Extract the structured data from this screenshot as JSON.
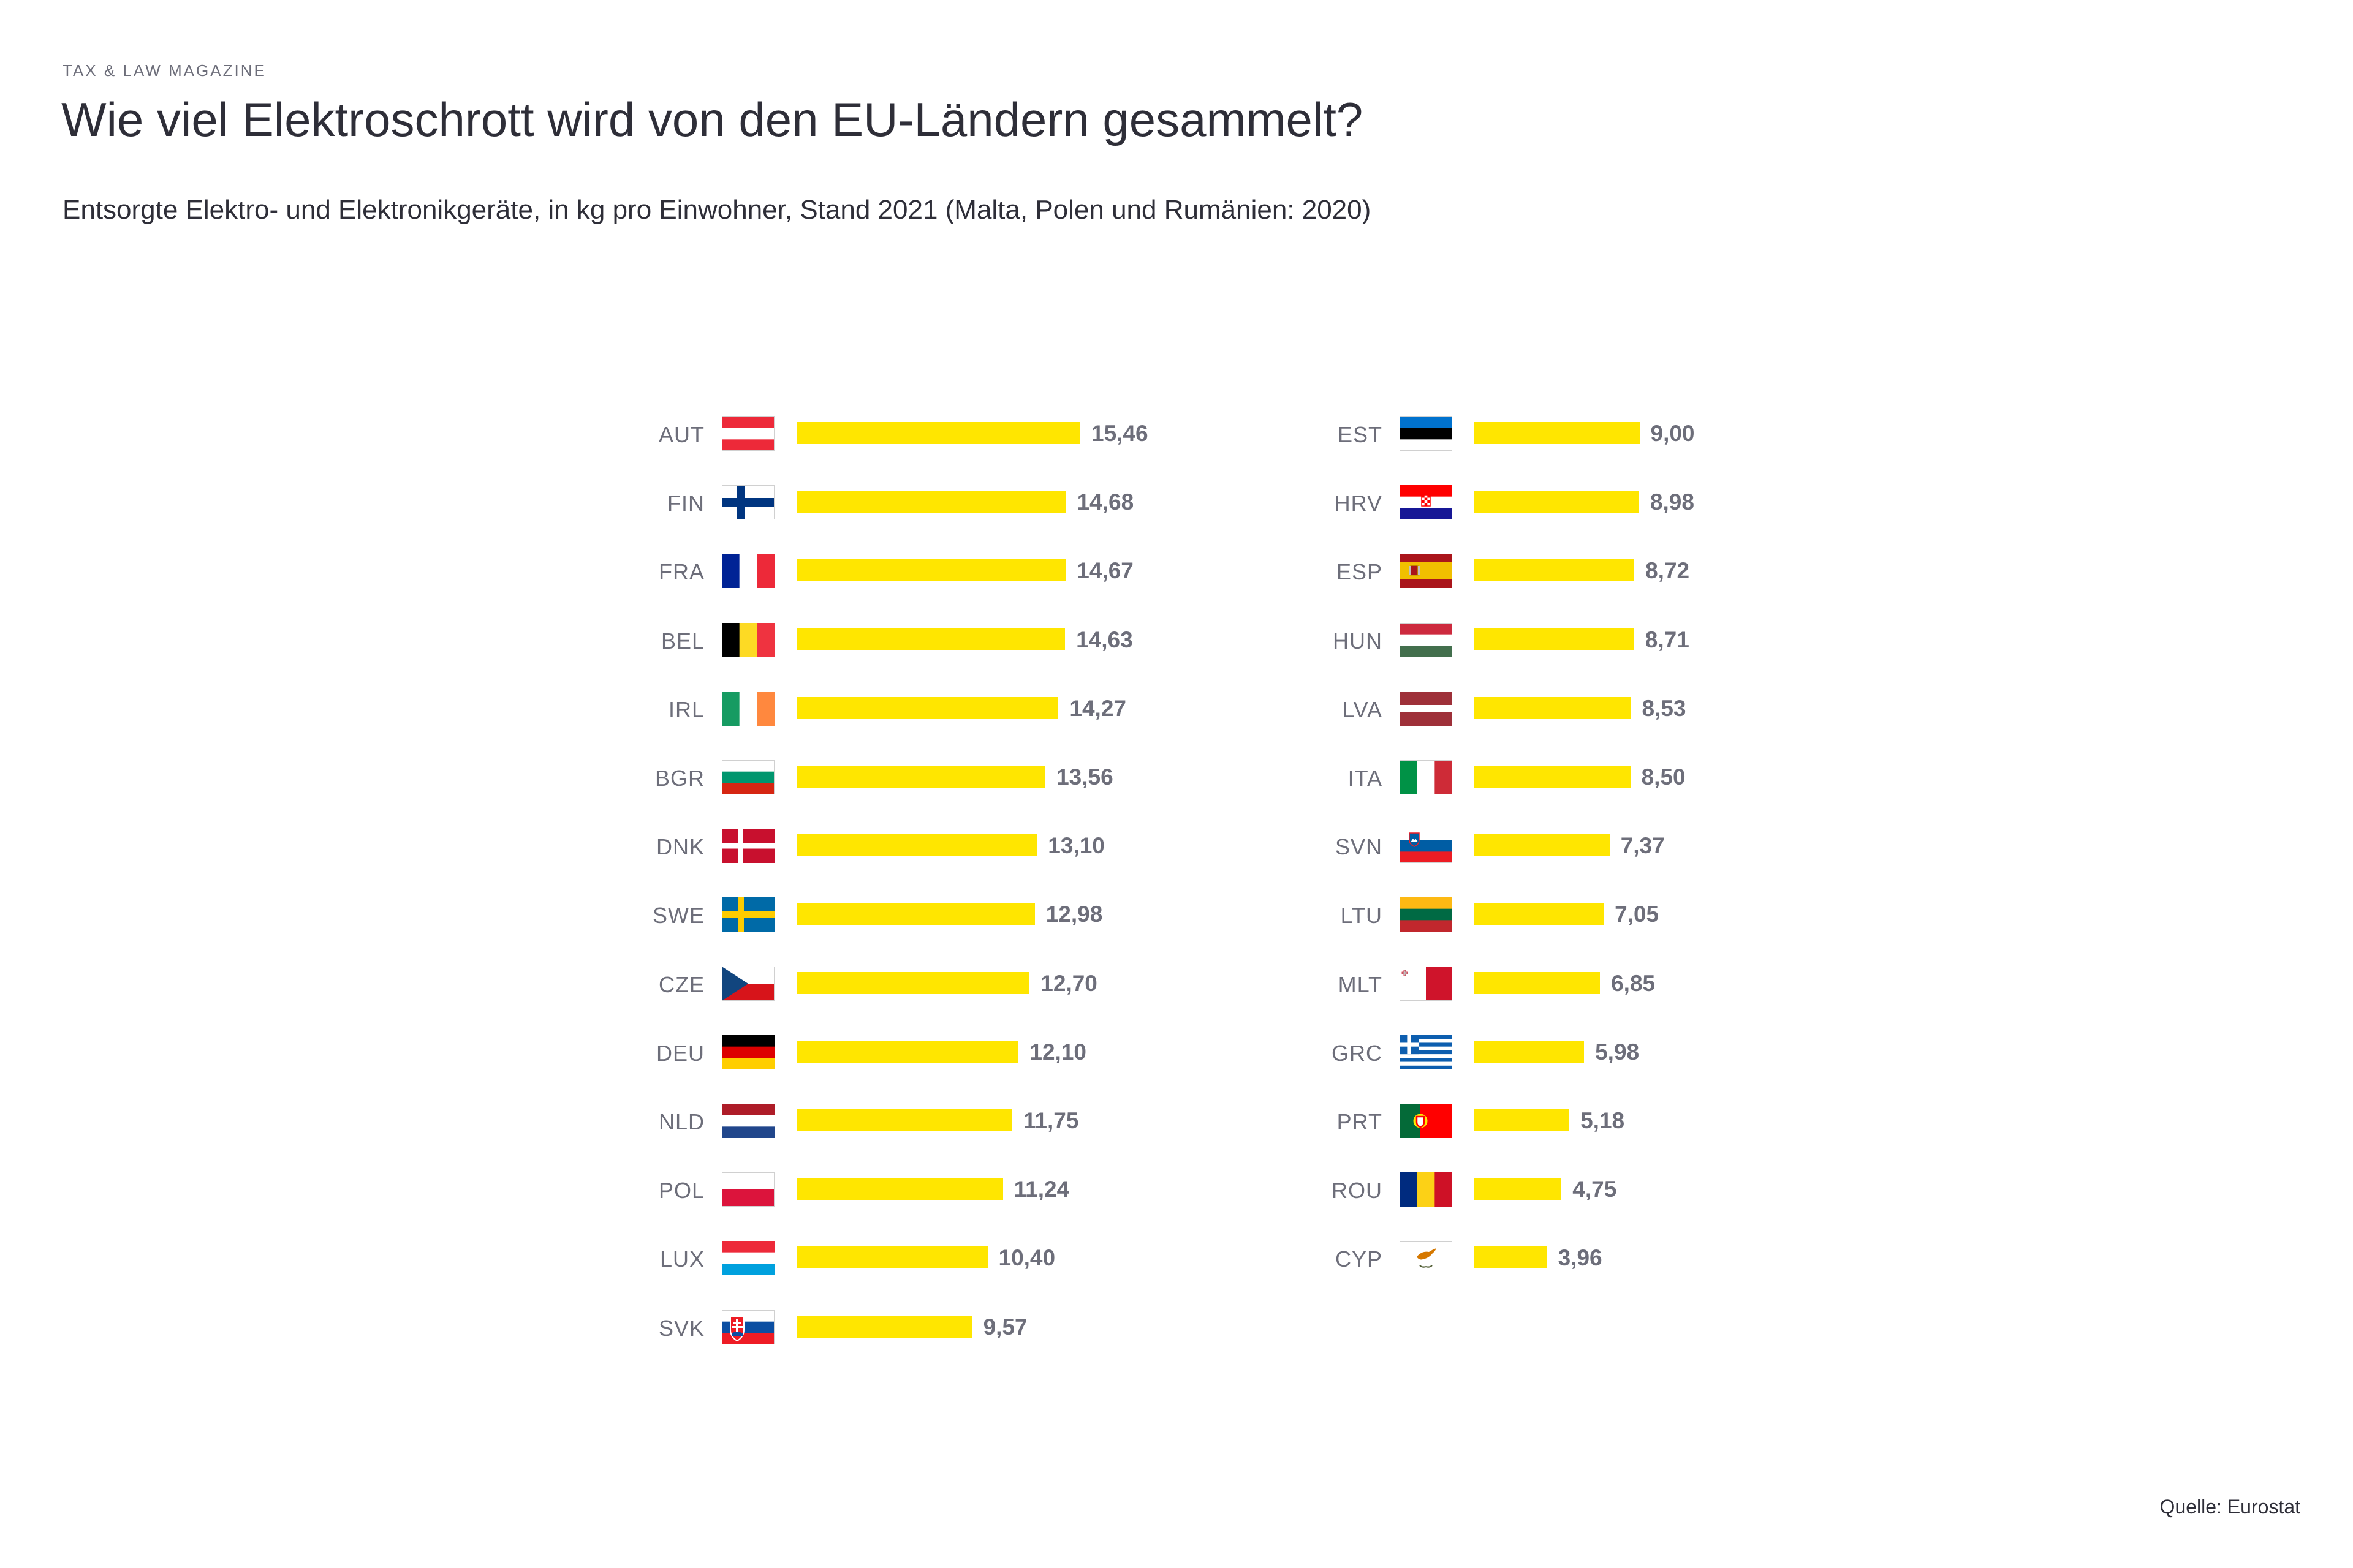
{
  "header": {
    "kicker": "TAX & LAW MAGAZINE",
    "title": "Wie viel Elektroschrott wird von den EU-Ländern gesammelt?",
    "subtitle": "Entsorgte Elektro- und Elektronikgeräte, in kg pro Einwohner, Stand 2021 (Malta, Polen und Rumänien: 2020)"
  },
  "footer": {
    "source": "Quelle: Eurostat"
  },
  "colors": {
    "bar": "#ffe600",
    "text": "#2e2e38",
    "muted": "#6d6e7a"
  },
  "chart_data": {
    "type": "bar",
    "orientation": "horizontal",
    "unit": "kg pro Einwohner",
    "title": "Wie viel Elektroschrott wird von den EU-Ländern gesammelt?",
    "xlim": [
      0,
      15.46
    ],
    "columns": [
      {
        "categories": [
          "AUT",
          "FIN",
          "FRA",
          "BEL",
          "IRL",
          "BGR",
          "DNK",
          "SWE",
          "CZE",
          "DEU",
          "NLD",
          "POL",
          "LUX",
          "SVK"
        ],
        "values": [
          15.46,
          14.68,
          14.67,
          14.63,
          14.27,
          13.56,
          13.1,
          12.98,
          12.7,
          12.1,
          11.75,
          11.24,
          10.4,
          9.57
        ],
        "labels": [
          "15,46",
          "14,68",
          "14,67",
          "14,63",
          "14,27",
          "13,56",
          "13,10",
          "12,98",
          "12,70",
          "12,10",
          "11,75",
          "11,24",
          "10,40",
          "9,57"
        ]
      },
      {
        "categories": [
          "EST",
          "HRV",
          "ESP",
          "HUN",
          "LVA",
          "ITA",
          "SVN",
          "LTU",
          "MLT",
          "GRC",
          "PRT",
          "ROU",
          "CYP"
        ],
        "values": [
          9.0,
          8.98,
          8.72,
          8.71,
          8.53,
          8.5,
          7.37,
          7.05,
          6.85,
          5.98,
          5.18,
          4.75,
          3.96
        ],
        "labels": [
          "9,00",
          "8,98",
          "8,72",
          "8,71",
          "8,53",
          "8,50",
          "7,37",
          "7,05",
          "6,85",
          "5,98",
          "5,18",
          "4,75",
          "3,96"
        ]
      }
    ]
  }
}
